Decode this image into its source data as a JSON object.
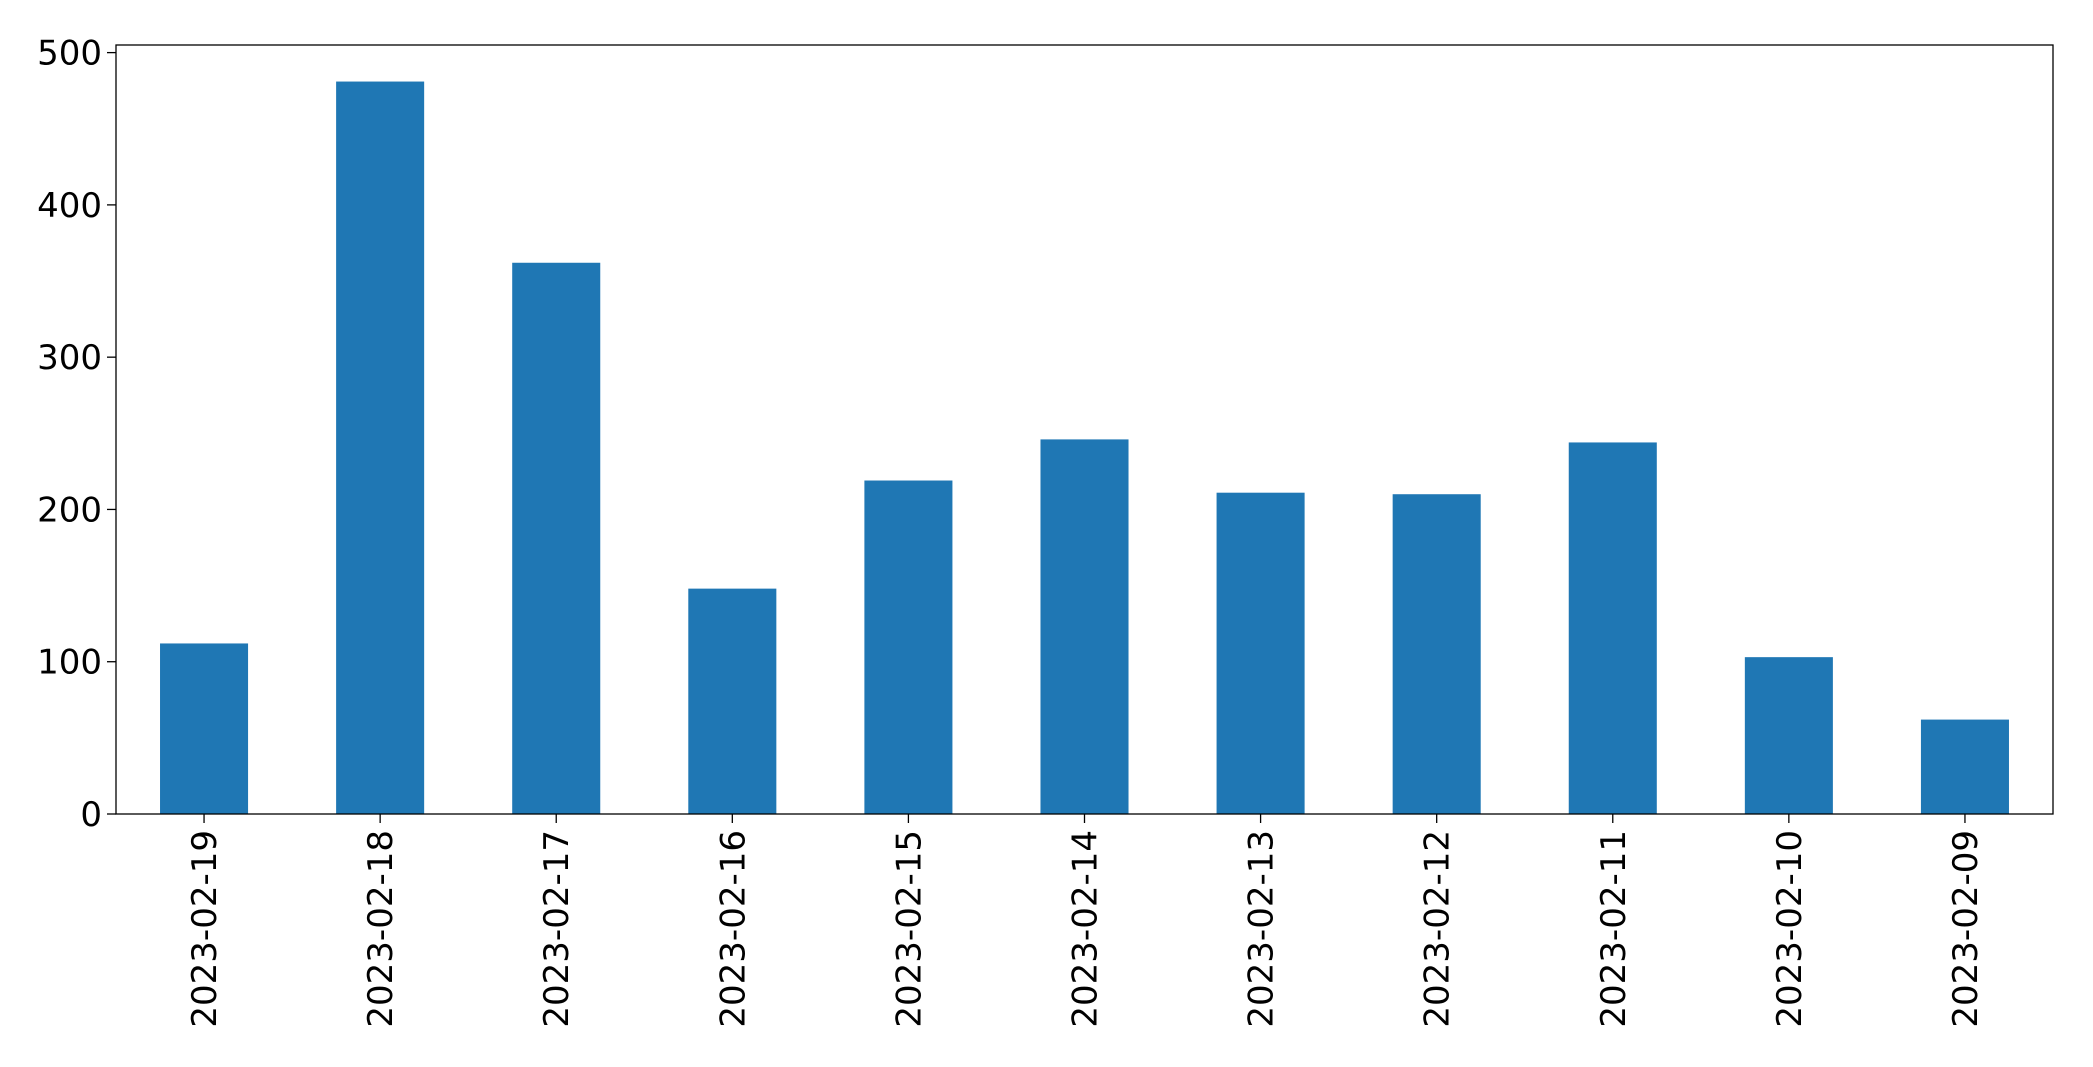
{
  "chart_data": {
    "type": "bar",
    "categories": [
      "2023-02-19",
      "2023-02-18",
      "2023-02-17",
      "2023-02-16",
      "2023-02-15",
      "2023-02-14",
      "2023-02-13",
      "2023-02-12",
      "2023-02-11",
      "2023-02-10",
      "2023-02-09"
    ],
    "values": [
      112,
      481,
      362,
      148,
      219,
      246,
      211,
      210,
      244,
      103,
      62
    ],
    "color": "#1f77b4",
    "ylim": [
      0,
      505
    ],
    "yticks": [
      0,
      100,
      200,
      300,
      400,
      500
    ],
    "grid": false
  }
}
